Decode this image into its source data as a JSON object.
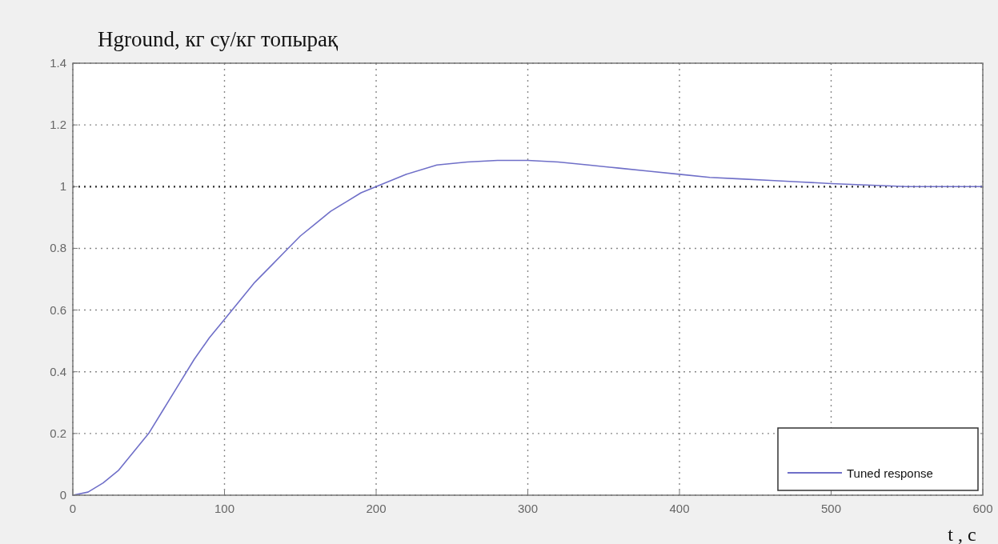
{
  "chart_data": {
    "type": "line",
    "title": "Hground, кг су/кг топырақ",
    "xlabel": "t , c",
    "x": [
      0,
      10,
      20,
      30,
      40,
      50,
      60,
      70,
      80,
      90,
      100,
      110,
      120,
      130,
      140,
      150,
      160,
      170,
      180,
      190,
      200,
      220,
      240,
      260,
      280,
      300,
      320,
      340,
      360,
      380,
      400,
      420,
      440,
      460,
      480,
      500,
      550,
      600
    ],
    "series": [
      {
        "name": "Tuned response",
        "color": "#6f6fc8",
        "values": [
          0,
          0.01,
          0.04,
          0.08,
          0.14,
          0.2,
          0.28,
          0.36,
          0.44,
          0.51,
          0.57,
          0.63,
          0.69,
          0.74,
          0.79,
          0.84,
          0.88,
          0.92,
          0.95,
          0.98,
          1.0,
          1.04,
          1.07,
          1.08,
          1.085,
          1.085,
          1.08,
          1.07,
          1.06,
          1.05,
          1.04,
          1.03,
          1.025,
          1.02,
          1.015,
          1.01,
          1.0,
          1.0
        ]
      }
    ],
    "xlim": [
      0,
      600
    ],
    "xticks": [
      0,
      100,
      200,
      300,
      400,
      500,
      600
    ],
    "ylim": [
      0,
      1.4
    ],
    "yticks": [
      0,
      0.2,
      0.4,
      0.6,
      0.8,
      1,
      1.2,
      1.4
    ],
    "ref_lines": [
      {
        "axis": "y",
        "value": 1,
        "color": "#333333",
        "line_style": "dotted"
      }
    ],
    "grid": true,
    "legend": "bottom right",
    "marker": "none",
    "line_style": "solid"
  }
}
